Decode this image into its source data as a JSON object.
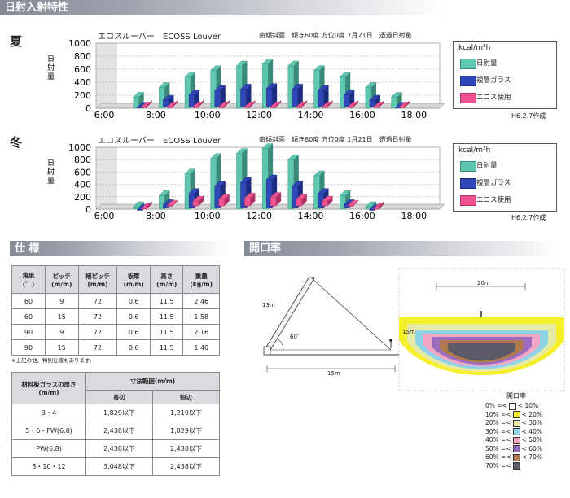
{
  "sections": {
    "solar": "日射入射特性",
    "spec": "仕 様",
    "aperture": "開口率"
  },
  "charts": [
    {
      "season": "夏",
      "title": "エコスルーバー　ECOSS Louver",
      "conditions": "南傾斜面　傾き60度  方位0度  7月21日　透過日射量",
      "ylabel": "日射量",
      "credit": "H6.2.7作成"
    },
    {
      "season": "冬",
      "title": "エコスルーバー　ECOSS Louver",
      "conditions": "南傾斜面　傾き60度  方位0度  1月21日　透過日射量",
      "ylabel": "日射量",
      "credit": "H6.2.7作成"
    }
  ],
  "legend": {
    "unit": "kcal/m²h",
    "items": [
      "日射量",
      "複層ガラス",
      "エコス使用"
    ]
  },
  "colors": {
    "solar": "#5fc7b0",
    "glass": "#2f47b8",
    "ecoss": "#f0518f",
    "header": "#8a8f9b"
  },
  "chart_data": [
    {
      "type": "bar",
      "title": "エコスルーバー　ECOSS Louver",
      "ylabel": "日射量",
      "ylim": [
        0,
        1000
      ],
      "yticks": [
        "1000",
        "800",
        "600",
        "400",
        "200",
        "0"
      ],
      "xticks": [
        "6:00",
        "8:00",
        "10:00",
        "12:00",
        "14:00",
        "16:00",
        "18:00"
      ],
      "categories": [
        "6:00",
        "7:00",
        "8:00",
        "9:00",
        "10:00",
        "11:00",
        "12:00",
        "13:00",
        "14:00",
        "15:00",
        "16:00",
        "17:00",
        "18:00"
      ],
      "series": [
        {
          "name": "日射量",
          "values": [
            0,
            170,
            320,
            480,
            580,
            650,
            680,
            650,
            580,
            480,
            320,
            170,
            0
          ]
        },
        {
          "name": "複層ガラス",
          "values": [
            0,
            40,
            150,
            230,
            300,
            320,
            330,
            320,
            300,
            230,
            150,
            40,
            0
          ]
        },
        {
          "name": "エコス使用",
          "values": [
            0,
            20,
            20,
            20,
            20,
            20,
            20,
            20,
            20,
            20,
            20,
            20,
            0
          ]
        }
      ]
    },
    {
      "type": "bar",
      "title": "エコスルーバー　ECOSS Louver",
      "ylabel": "日射量",
      "ylim": [
        0,
        1000
      ],
      "yticks": [
        "1000",
        "800",
        "600",
        "400",
        "200",
        "0"
      ],
      "xticks": [
        "6:00",
        "8:00",
        "10:00",
        "12:00",
        "14:00",
        "16:00",
        "18:00"
      ],
      "categories": [
        "6:00",
        "7:00",
        "8:00",
        "9:00",
        "10:00",
        "11:00",
        "12:00",
        "13:00",
        "14:00",
        "15:00",
        "16:00",
        "17:00",
        "18:00"
      ],
      "series": [
        {
          "name": "日射量",
          "values": [
            0,
            40,
            220,
            570,
            820,
            900,
            980,
            800,
            540,
            220,
            40,
            0,
            0
          ]
        },
        {
          "name": "複層ガラス",
          "values": [
            0,
            20,
            100,
            280,
            400,
            460,
            500,
            400,
            280,
            100,
            20,
            0,
            0
          ]
        },
        {
          "name": "エコス使用",
          "values": [
            0,
            10,
            60,
            130,
            160,
            180,
            190,
            160,
            130,
            60,
            10,
            0,
            0
          ]
        }
      ]
    }
  ],
  "spec_table1": {
    "headers": [
      "角度\n(゜)",
      "ピッチ\n(m/m)",
      "補ピッチ\n(m/m)",
      "板厚\n(m/m)",
      "高さ\n(m/m)",
      "重量\n(kg/m)"
    ],
    "rows": [
      [
        "60",
        "9",
        "72",
        "0.6",
        "11.5",
        "2.46"
      ],
      [
        "60",
        "15",
        "72",
        "0.6",
        "11.5",
        "1.58"
      ],
      [
        "90",
        "9",
        "72",
        "0.6",
        "11.5",
        "2.16"
      ],
      [
        "90",
        "15",
        "72",
        "0.6",
        "11.5",
        "1.40"
      ]
    ],
    "note": "※上記の他、特別仕様もあります。"
  },
  "spec_table2": {
    "col1": "材料板ガラスの厚さ\n(m/m)",
    "group": "寸法範囲(m/m)",
    "sub": [
      "長辺",
      "短辺"
    ],
    "rows": [
      [
        "3・4",
        "1,829以下",
        "1,219以下"
      ],
      [
        "5・6・FW(6.8)",
        "2,438以下",
        "1,829以下"
      ],
      [
        "PW(6.8)",
        "2,438以下",
        "2,438以下"
      ],
      [
        "8・10・12",
        "3,048以下",
        "2,438以下"
      ]
    ]
  },
  "aperture": {
    "height": "13m",
    "angle": "60゜",
    "distance": "15m",
    "width": "20m",
    "small": "15m",
    "legend_title": "開口率",
    "ranges": [
      {
        "label": "0% =<",
        "color": "#ffffff",
        "end": "< 10%"
      },
      {
        "label": "10% =<",
        "color": "#f5ee2a",
        "end": "< 20%"
      },
      {
        "label": "20% =<",
        "color": "#e7eaa6",
        "end": "< 30%"
      },
      {
        "label": "30% =<",
        "color": "#8fd3e8",
        "end": "< 40%"
      },
      {
        "label": "40% =<",
        "color": "#f3a8c6",
        "end": "< 50%"
      },
      {
        "label": "50% =<",
        "color": "#9b6bc0",
        "end": "< 60%"
      },
      {
        "label": "60% =<",
        "color": "#b07a4e",
        "end": "< 70%"
      },
      {
        "label": "70% =<",
        "color": "#5a5a66",
        "end": ""
      }
    ]
  }
}
